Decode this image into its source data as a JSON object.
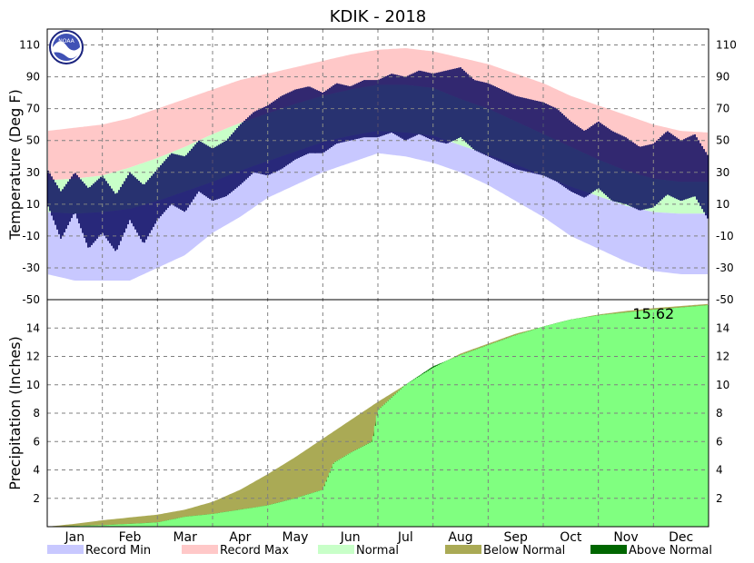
{
  "chart_data": [
    {
      "type": "area",
      "title": "KDIK - 2018",
      "ylabel": "Temperature (Deg F)",
      "ylim": [
        -50,
        120
      ],
      "yticks": [
        -50,
        -30,
        -10,
        10,
        30,
        50,
        70,
        90,
        110
      ],
      "x_unit": "month",
      "months": [
        "Jan",
        "Feb",
        "Mar",
        "Apr",
        "May",
        "Jun",
        "Jul",
        "Aug",
        "Sep",
        "Oct",
        "Nov",
        "Dec"
      ],
      "grid": true,
      "series": [
        {
          "name": "Record Min",
          "color": "#c8c8ff",
          "x": [
            0,
            0.5,
            1,
            1.5,
            2,
            2.5,
            3,
            3.5,
            4,
            4.5,
            5,
            5.5,
            6,
            6.5,
            7,
            7.5,
            8,
            8.5,
            9,
            9.5,
            10,
            10.5,
            11,
            11.5,
            12
          ],
          "values": [
            -34,
            -38,
            -38,
            -38,
            -30,
            -22,
            -8,
            2,
            14,
            22,
            30,
            36,
            42,
            40,
            36,
            30,
            22,
            12,
            2,
            -10,
            -18,
            -26,
            -32,
            -34,
            -34
          ]
        },
        {
          "name": "Record Max",
          "color": "#ffc8c8",
          "x": [
            0,
            0.5,
            1,
            1.5,
            2,
            2.5,
            3,
            3.5,
            4,
            4.5,
            5,
            5.5,
            6,
            6.5,
            7,
            7.5,
            8,
            8.5,
            9,
            9.5,
            10,
            10.5,
            11,
            11.5,
            12
          ],
          "values": [
            56,
            58,
            60,
            64,
            70,
            76,
            82,
            88,
            92,
            96,
            100,
            104,
            107,
            108,
            106,
            102,
            98,
            92,
            86,
            78,
            72,
            66,
            60,
            56,
            55
          ]
        },
        {
          "name": "Normal",
          "color": "#c8ffc8",
          "x": [
            0,
            0.5,
            1,
            1.5,
            2,
            2.5,
            3,
            3.5,
            4,
            4.5,
            5,
            5.5,
            6,
            6.5,
            7,
            7.5,
            8,
            8.5,
            9,
            9.5,
            10,
            10.5,
            11,
            11.5,
            12
          ],
          "low": [
            5,
            4,
            5,
            7,
            12,
            18,
            24,
            31,
            37,
            43,
            49,
            53,
            56,
            55,
            53,
            47,
            41,
            35,
            28,
            21,
            15,
            9,
            5,
            4,
            4
          ],
          "high": [
            25,
            26,
            28,
            33,
            39,
            46,
            54,
            61,
            67,
            73,
            78,
            82,
            85,
            85,
            83,
            76,
            70,
            62,
            54,
            46,
            38,
            31,
            26,
            24,
            24
          ]
        },
        {
          "name": "Daily Range",
          "color": "#00005a",
          "x": [
            0,
            0.25,
            0.5,
            0.75,
            1,
            1.25,
            1.5,
            1.75,
            2,
            2.25,
            2.5,
            2.75,
            3,
            3.25,
            3.5,
            3.75,
            4,
            4.25,
            4.5,
            4.75,
            5,
            5.25,
            5.5,
            5.75,
            6,
            6.25,
            6.5,
            6.75,
            7,
            7.25,
            7.5,
            7.75,
            8,
            8.25,
            8.5,
            8.75,
            9,
            9.25,
            9.5,
            9.75,
            10,
            10.25,
            10.5,
            10.75,
            11,
            11.25,
            11.5,
            11.75,
            12
          ],
          "low": [
            10,
            -12,
            5,
            -18,
            -8,
            -20,
            0,
            -15,
            0,
            10,
            5,
            18,
            12,
            15,
            22,
            30,
            28,
            32,
            38,
            42,
            42,
            48,
            50,
            52,
            52,
            55,
            50,
            54,
            50,
            48,
            52,
            44,
            40,
            36,
            32,
            30,
            28,
            24,
            18,
            14,
            20,
            12,
            10,
            6,
            8,
            16,
            12,
            15,
            0
          ],
          "high": [
            32,
            18,
            30,
            20,
            28,
            16,
            30,
            22,
            32,
            42,
            40,
            50,
            45,
            50,
            60,
            68,
            72,
            78,
            82,
            84,
            80,
            86,
            84,
            88,
            88,
            92,
            90,
            94,
            92,
            94,
            96,
            88,
            86,
            82,
            78,
            76,
            74,
            70,
            62,
            56,
            62,
            56,
            52,
            46,
            48,
            56,
            50,
            54,
            40
          ]
        }
      ],
      "legend": [
        "Record Min",
        "Record Max",
        "Normal",
        "Below Normal",
        "Above Normal"
      ],
      "legend_position": "bottom"
    },
    {
      "type": "area",
      "ylabel": "Precipitation (Inches)",
      "ylim": [
        0,
        16
      ],
      "yticks": [
        2,
        4,
        6,
        8,
        10,
        12,
        14
      ],
      "x_unit": "month",
      "annotation": "15.62",
      "grid": true,
      "series": [
        {
          "name": "Observed",
          "color": "#80ff80",
          "x": [
            0,
            0.5,
            1,
            1.5,
            2,
            2.5,
            3,
            3.5,
            4,
            4.5,
            5,
            5.2,
            5.5,
            5.9,
            6,
            6.5,
            7,
            7.5,
            8,
            8.5,
            9,
            9.5,
            10,
            10.5,
            11,
            11.5,
            12
          ],
          "values": [
            0,
            0.05,
            0.1,
            0.2,
            0.3,
            0.7,
            0.9,
            1.2,
            1.5,
            2.0,
            2.6,
            4.5,
            5.2,
            6.0,
            8.2,
            10.0,
            11.3,
            12.1,
            12.8,
            13.5,
            14.1,
            14.6,
            14.9,
            15.1,
            15.3,
            15.45,
            15.62
          ]
        },
        {
          "name": "Normal",
          "x": [
            0,
            0.5,
            1,
            1.5,
            2,
            2.5,
            3,
            3.5,
            4,
            4.5,
            5,
            5.5,
            6,
            6.5,
            7,
            7.5,
            8,
            8.5,
            9,
            9.5,
            10,
            10.5,
            11,
            11.5,
            12
          ],
          "values": [
            0,
            0.2,
            0.45,
            0.65,
            0.85,
            1.2,
            1.75,
            2.6,
            3.7,
            4.9,
            6.2,
            7.5,
            8.8,
            10.0,
            11.2,
            12.2,
            12.9,
            13.6,
            14.1,
            14.6,
            14.95,
            15.2,
            15.4,
            15.55,
            15.7
          ]
        }
      ]
    }
  ],
  "colors": {
    "record_min": "#c8c8ff",
    "record_max": "#ffc8c8",
    "normal": "#c8ffc8",
    "below_normal": "#aaaa55",
    "above_normal": "#006600",
    "observed_precip": "#80ff80",
    "daily_range": "#00005a"
  },
  "logo_icon": "noaa-logo"
}
